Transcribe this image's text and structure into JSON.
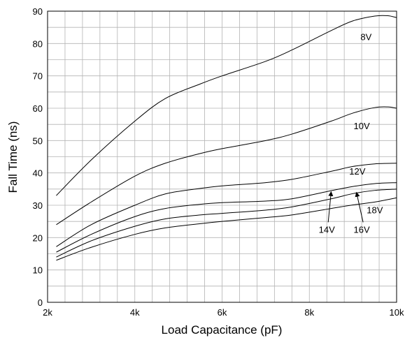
{
  "chart_data": {
    "type": "line",
    "title": "",
    "xlabel": "Load Capacitance (pF)",
    "ylabel": "Fall Time (ns)",
    "xlim": [
      2,
      10
    ],
    "ylim": [
      0,
      90
    ],
    "x_tick_values": [
      2,
      4,
      6,
      8,
      10
    ],
    "x_tick_labels": [
      "2k",
      "4k",
      "6k",
      "8k",
      "10k"
    ],
    "y_tick_values": [
      0,
      10,
      20,
      30,
      40,
      50,
      60,
      70,
      80,
      90
    ],
    "y_tick_labels": [
      "0",
      "10",
      "20",
      "30",
      "40",
      "50",
      "60",
      "70",
      "80",
      "90"
    ],
    "grid": true,
    "x_grid_step": 0.4,
    "y_grid_step": 5,
    "series": [
      {
        "name": "8V",
        "x": [
          2.2,
          3,
          4,
          4.7,
          5.5,
          6,
          7,
          7.6,
          8.5,
          9,
          9.5,
          9.8,
          10
        ],
        "y": [
          33,
          44,
          56,
          63,
          67.5,
          70,
          74.5,
          78,
          84,
          87,
          88.5,
          88.6,
          88
        ]
      },
      {
        "name": "10V",
        "x": [
          2.2,
          3,
          4,
          4.7,
          5.5,
          6,
          7,
          7.6,
          8.5,
          9,
          9.5,
          9.8,
          10
        ],
        "y": [
          24,
          31,
          39,
          43,
          46,
          47.5,
          50,
          52,
          56,
          58.5,
          60.2,
          60.4,
          60
        ]
      },
      {
        "name": "12V",
        "x": [
          2.2,
          3,
          4,
          4.7,
          5.5,
          6,
          7,
          7.6,
          8.5,
          9,
          9.5,
          10
        ],
        "y": [
          17.2,
          24,
          30,
          33.5,
          35.2,
          36,
          37,
          38,
          40.5,
          42,
          42.8,
          43
        ]
      },
      {
        "name": "14V",
        "x": [
          2.2,
          3,
          4,
          4.7,
          5.5,
          6,
          7,
          7.6,
          8.5,
          9,
          9.5,
          10
        ],
        "y": [
          15.5,
          21,
          26.5,
          29,
          30.3,
          30.8,
          31.3,
          32,
          34.5,
          35.8,
          36.7,
          37
        ]
      },
      {
        "name": "16V",
        "x": [
          2.2,
          3,
          4,
          4.7,
          5.5,
          6,
          7,
          7.6,
          8.5,
          9,
          9.5,
          10
        ],
        "y": [
          14,
          19,
          23.5,
          25.8,
          27,
          27.5,
          28.5,
          29.5,
          32,
          33.6,
          34.6,
          35
        ]
      },
      {
        "name": "18V",
        "x": [
          2.2,
          3,
          4,
          4.7,
          5.5,
          6,
          7,
          7.6,
          8.5,
          9,
          9.5,
          10
        ],
        "y": [
          13,
          17,
          21,
          23,
          24.3,
          25,
          26.2,
          27,
          29,
          30.1,
          31,
          32.3
        ]
      }
    ],
    "annotations": [
      {
        "text": "8V",
        "series": "8V"
      },
      {
        "text": "10V",
        "series": "10V"
      },
      {
        "text": "12V",
        "series": "12V"
      },
      {
        "text": "14V",
        "series": "14V",
        "arrow": true
      },
      {
        "text": "16V",
        "series": "16V",
        "arrow": true
      },
      {
        "text": "18V",
        "series": "18V"
      }
    ]
  }
}
